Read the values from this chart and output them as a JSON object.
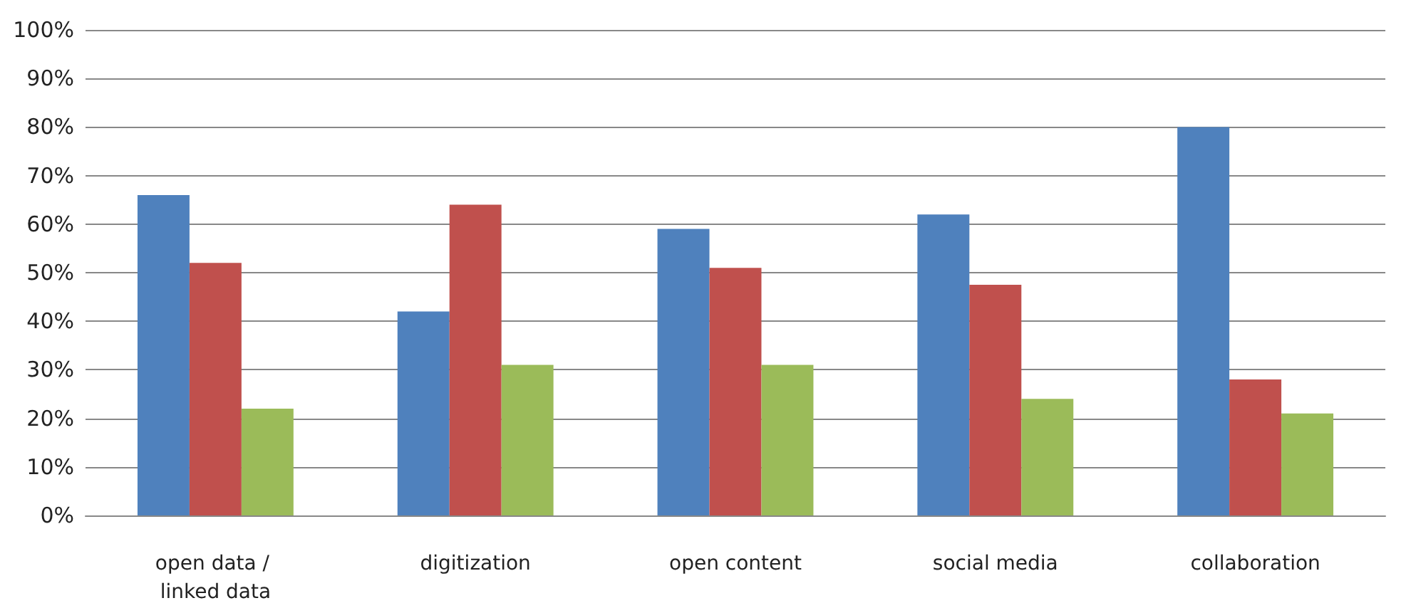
{
  "chart_data": {
    "type": "bar",
    "categories": [
      "open data / linked data",
      "digitization",
      "open content",
      "social media",
      "collaboration"
    ],
    "series": [
      {
        "color": "#4f81bd",
        "values": [
          66,
          42,
          59,
          62,
          80
        ]
      },
      {
        "color": "#c0504d",
        "values": [
          52,
          64,
          51,
          47.5,
          28
        ]
      },
      {
        "color": "#9bbb59",
        "values": [
          22,
          31,
          31,
          24,
          21
        ]
      }
    ],
    "ylim": [
      0,
      100
    ],
    "yticks": [
      {
        "value": 0,
        "label": "0%"
      },
      {
        "value": 10,
        "label": "10%"
      },
      {
        "value": 20,
        "label": "20%"
      },
      {
        "value": 30,
        "label": "30%"
      },
      {
        "value": 40,
        "label": "40%"
      },
      {
        "value": 50,
        "label": "50%"
      },
      {
        "value": 60,
        "label": "60%"
      },
      {
        "value": 70,
        "label": "70%"
      },
      {
        "value": 80,
        "label": "80%"
      },
      {
        "value": 90,
        "label": "90%"
      },
      {
        "value": 100,
        "label": "100%"
      }
    ],
    "grid": "y"
  }
}
